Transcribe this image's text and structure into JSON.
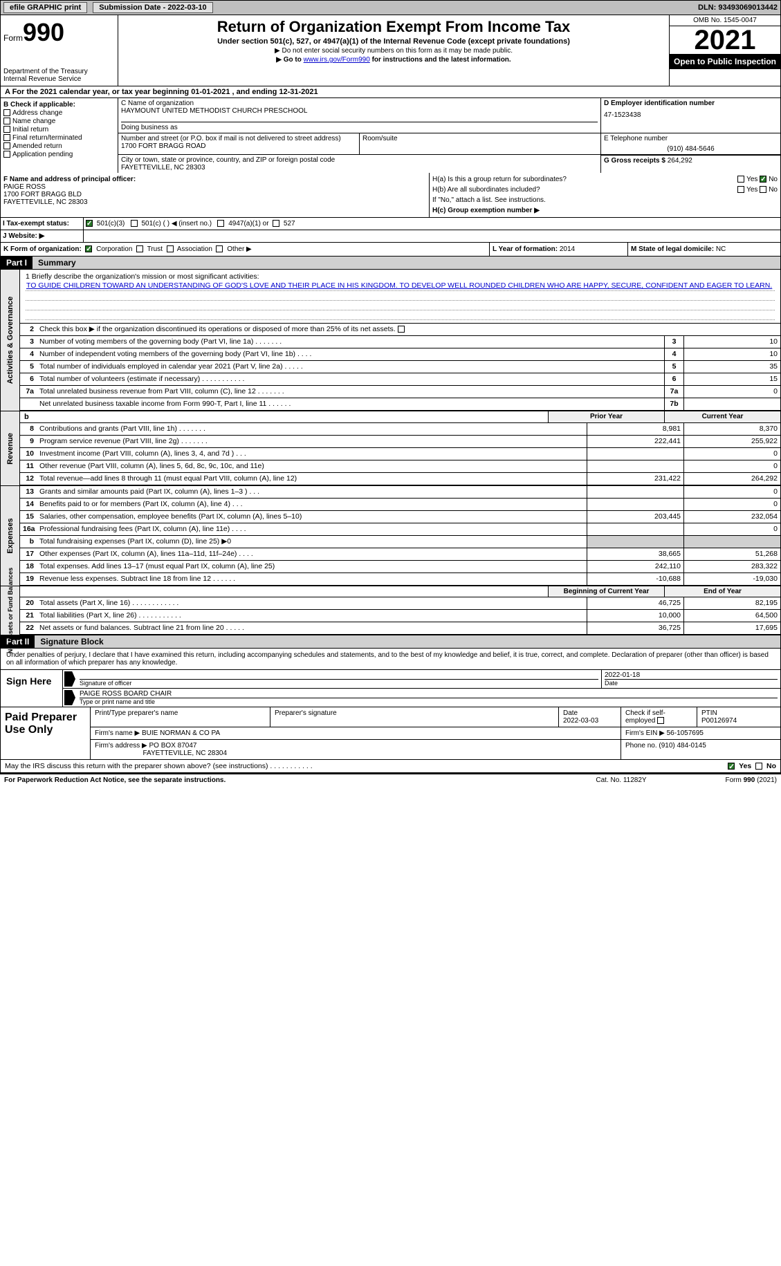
{
  "topbar": {
    "efile_label": "efile GRAPHIC print",
    "submission_label": "Submission Date - 2022-03-10",
    "dln": "DLN: 93493069013442"
  },
  "header": {
    "form_label": "Form",
    "form_number": "990",
    "dept": "Department of the Treasury",
    "irs": "Internal Revenue Service",
    "title": "Return of Organization Exempt From Income Tax",
    "subtitle": "Under section 501(c), 527, or 4947(a)(1) of the Internal Revenue Code (except private foundations)",
    "note1": "▶ Do not enter social security numbers on this form as it may be made public.",
    "note2_pre": "▶ Go to ",
    "note2_link": "www.irs.gov/Form990",
    "note2_post": " for instructions and the latest information.",
    "omb": "OMB No. 1545-0047",
    "year": "2021",
    "open_pub": "Open to Public Inspection"
  },
  "row_a": "A For the 2021 calendar year, or tax year beginning 01-01-2021   , and ending 12-31-2021",
  "section_b": {
    "label": "B Check if applicable:",
    "items": [
      "Address change",
      "Name change",
      "Initial return",
      "Final return/terminated",
      "Amended return",
      "Application pending"
    ]
  },
  "section_c": {
    "name_label": "C Name of organization",
    "org_name": "HAYMOUNT UNITED METHODIST CHURCH PRESCHOOL",
    "dba_label": "Doing business as",
    "addr_label": "Number and street (or P.O. box if mail is not delivered to street address)",
    "addr": "1700 FORT BRAGG ROAD",
    "room_label": "Room/suite",
    "city_label": "City or town, state or province, country, and ZIP or foreign postal code",
    "city": "FAYETTEVILLE, NC  28303"
  },
  "section_d": {
    "label": "D Employer identification number",
    "value": "47-1523438"
  },
  "section_e": {
    "label": "E Telephone number",
    "value": "(910) 484-5646"
  },
  "section_g": {
    "label": "G Gross receipts $ ",
    "value": "264,292"
  },
  "section_f": {
    "label": "F Name and address of principal officer:",
    "name": "PAIGE ROSS",
    "addr1": "1700 FORT BRAGG BLD",
    "addr2": "FAYETTEVILLE, NC  28303"
  },
  "section_h": {
    "a_label": "H(a)  Is this a group return for subordinates?",
    "a_yes": "Yes",
    "a_no": "No",
    "b_label": "H(b)  Are all subordinates included?",
    "b_yes": "Yes",
    "b_no": "No",
    "b_note": "If \"No,\" attach a list. See instructions.",
    "c_label": "H(c)  Group exemption number ▶"
  },
  "section_i": {
    "label": "I  Tax-exempt status:",
    "opt1": "501(c)(3)",
    "opt2": "501(c) (  ) ◀ (insert no.)",
    "opt3": "4947(a)(1) or",
    "opt4": "527"
  },
  "section_j": {
    "label": "J  Website: ▶"
  },
  "row_k": {
    "label": "K Form of organization:",
    "opts": [
      "Corporation",
      "Trust",
      "Association",
      "Other ▶"
    ],
    "l_label": "L Year of formation: ",
    "l_val": "2014",
    "m_label": "M State of legal domicile: ",
    "m_val": "NC"
  },
  "part1": {
    "hdr": "Part I",
    "title": "Summary"
  },
  "mission": {
    "intro": "1   Briefly describe the organization's mission or most significant activities:",
    "text": "TO GUIDE CHILDREN TOWARD AN UNDERSTANDING OF GOD'S LOVE AND THEIR PLACE IN HIS KINGDOM. TO DEVELOP WELL ROUNDED CHILDREN WHO ARE HAPPY, SECURE, CONFIDENT AND EAGER TO LEARN."
  },
  "governance": {
    "vtab": "Activities & Governance",
    "line2": "Check this box ▶  if the organization discontinued its operations or disposed of more than 25% of its net assets.",
    "rows": [
      {
        "n": "3",
        "t": "Number of voting members of the governing body (Part VI, line 1a)   .    .    .    .    .    .    .",
        "box": "3",
        "v": "10"
      },
      {
        "n": "4",
        "t": "Number of independent voting members of the governing body (Part VI, line 1b)   .    .    .    .",
        "box": "4",
        "v": "10"
      },
      {
        "n": "5",
        "t": "Total number of individuals employed in calendar year 2021 (Part V, line 2a)   .    .    .    .    .",
        "box": "5",
        "v": "35"
      },
      {
        "n": "6",
        "t": "Total number of volunteers (estimate if necessary)    .    .    .    .    .    .    .    .    .    .    .",
        "box": "6",
        "v": "15"
      },
      {
        "n": "7a",
        "t": "Total unrelated business revenue from Part VIII, column (C), line 12   .    .    .    .    .    .    .",
        "box": "7a",
        "v": "0"
      },
      {
        "n": "",
        "t": "Net unrelated business taxable income from Form 990-T, Part I, line 11   .    .    .    .    .    .",
        "box": "7b",
        "v": ""
      }
    ]
  },
  "revenue": {
    "vtab": "Revenue",
    "prior_hdr": "Prior Year",
    "curr_hdr": "Current Year",
    "rows": [
      {
        "n": "8",
        "t": "Contributions and grants (Part VIII, line 1h)   .    .    .    .    .    .    .",
        "p": "8,981",
        "c": "8,370"
      },
      {
        "n": "9",
        "t": "Program service revenue (Part VIII, line 2g)   .    .    .    .    .    .    .",
        "p": "222,441",
        "c": "255,922"
      },
      {
        "n": "10",
        "t": "Investment income (Part VIII, column (A), lines 3, 4, and 7d )   .    .    .",
        "p": "",
        "c": "0"
      },
      {
        "n": "11",
        "t": "Other revenue (Part VIII, column (A), lines 5, 6d, 8c, 9c, 10c, and 11e)",
        "p": "",
        "c": "0"
      },
      {
        "n": "12",
        "t": "Total revenue—add lines 8 through 11 (must equal Part VIII, column (A), line 12)",
        "p": "231,422",
        "c": "264,292"
      }
    ]
  },
  "expenses": {
    "vtab": "Expenses",
    "rows": [
      {
        "n": "13",
        "t": "Grants and similar amounts paid (Part IX, column (A), lines 1–3 )   .    .    .",
        "p": "",
        "c": "0"
      },
      {
        "n": "14",
        "t": "Benefits paid to or for members (Part IX, column (A), line 4)   .    .    .",
        "p": "",
        "c": "0"
      },
      {
        "n": "15",
        "t": "Salaries, other compensation, employee benefits (Part IX, column (A), lines 5–10)",
        "p": "203,445",
        "c": "232,054"
      },
      {
        "n": "16a",
        "t": "Professional fundraising fees (Part IX, column (A), line 11e)   .    .    .    .",
        "p": "",
        "c": "0"
      },
      {
        "n": "b",
        "t": "Total fundraising expenses (Part IX, column (D), line 25) ▶0",
        "p": "shaded",
        "c": "shaded"
      },
      {
        "n": "17",
        "t": "Other expenses (Part IX, column (A), lines 11a–11d, 11f–24e)   .    .    .    .",
        "p": "38,665",
        "c": "51,268"
      },
      {
        "n": "18",
        "t": "Total expenses. Add lines 13–17 (must equal Part IX, column (A), line 25)",
        "p": "242,110",
        "c": "283,322"
      },
      {
        "n": "19",
        "t": "Revenue less expenses. Subtract line 18 from line 12   .    .    .    .    .    .",
        "p": "-10,688",
        "c": "-19,030"
      }
    ]
  },
  "netassets": {
    "vtab": "Net Assets or Fund Balances",
    "beg_hdr": "Beginning of Current Year",
    "end_hdr": "End of Year",
    "rows": [
      {
        "n": "20",
        "t": "Total assets (Part X, line 16)   .    .    .    .    .    .    .    .    .    .    .    .",
        "p": "46,725",
        "c": "82,195"
      },
      {
        "n": "21",
        "t": "Total liabilities (Part X, line 26)   .    .    .    .    .    .    .    .    .    .    .",
        "p": "10,000",
        "c": "64,500"
      },
      {
        "n": "22",
        "t": "Net assets or fund balances. Subtract line 21 from line 20   .    .    .    .    .",
        "p": "36,725",
        "c": "17,695"
      }
    ]
  },
  "part2": {
    "hdr": "Part II",
    "title": "Signature Block"
  },
  "sig_intro": "Under penalties of perjury, I declare that I have examined this return, including accompanying schedules and statements, and to the best of my knowledge and belief, it is true, correct, and complete. Declaration of preparer (other than officer) is based on all information of which preparer has any knowledge.",
  "sign": {
    "left": "Sign Here",
    "sig_label": "Signature of officer",
    "date": "2022-01-18",
    "date_label": "Date",
    "name": "PAIGE ROSS  BOARD CHAIR",
    "name_label": "Type or print name and title"
  },
  "preparer": {
    "left": "Paid Preparer Use Only",
    "print_label": "Print/Type preparer's name",
    "sig_label": "Preparer's signature",
    "date_label": "Date",
    "date": "2022-03-03",
    "check_label": "Check  if self-employed",
    "ptin_label": "PTIN",
    "ptin": "P00126974",
    "firm_name_label": "Firm's name    ▶ ",
    "firm_name": "BUIE NORMAN & CO PA",
    "firm_ein_label": "Firm's EIN ▶ ",
    "firm_ein": "56-1057695",
    "firm_addr_label": "Firm's address ▶ ",
    "firm_addr1": "PO BOX 87047",
    "firm_addr2": "FAYETTEVILLE, NC  28304",
    "phone_label": "Phone no. ",
    "phone": "(910) 484-0145"
  },
  "discuss": {
    "text": "May the IRS discuss this return with the preparer shown above? (see instructions)    .    .    .    .    .    .    .    .    .    .    .",
    "yes": "Yes",
    "no": "No"
  },
  "footer": {
    "left": "For Paperwork Reduction Act Notice, see the separate instructions.",
    "mid": "Cat. No. 11282Y",
    "right": "Form 990 (2021)"
  }
}
